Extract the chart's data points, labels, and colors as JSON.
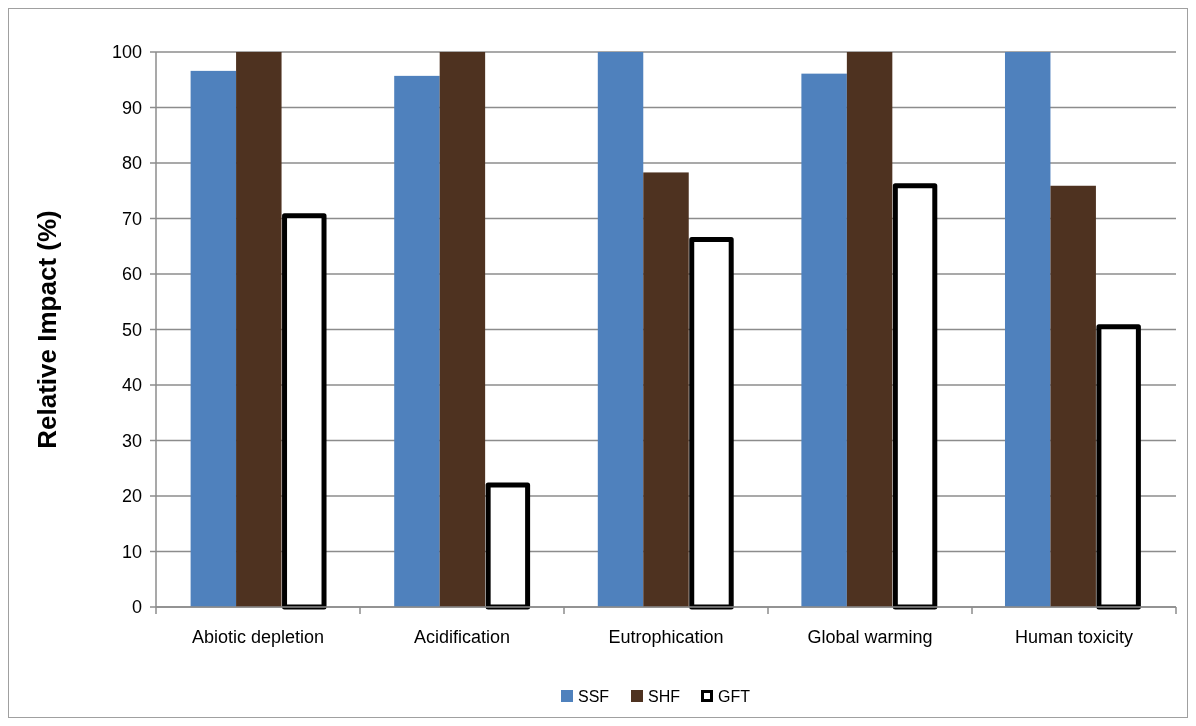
{
  "chart_data": {
    "type": "bar",
    "ylabel": "Relative Impact (%)",
    "categories": [
      "Abiotic depletion",
      "Acidification",
      "Eutrophication",
      "Global warming",
      "Human toxicity"
    ],
    "series": [
      {
        "name": "SSF",
        "color": "#4f81bd",
        "values": [
          96.6,
          95.7,
          100,
          96.1,
          100
        ]
      },
      {
        "name": "SHF",
        "color": "#4e3220",
        "values": [
          100,
          100,
          78.3,
          100,
          75.9
        ]
      },
      {
        "name": "GFT",
        "color": "#ffffff",
        "values": [
          70.5,
          22,
          66.2,
          75.9,
          50.5
        ]
      }
    ],
    "ylim": [
      0,
      100
    ],
    "yticks": [
      0,
      10,
      20,
      30,
      40,
      50,
      60,
      70,
      80,
      90,
      100
    ],
    "grid": "y",
    "legend": "bottom"
  }
}
